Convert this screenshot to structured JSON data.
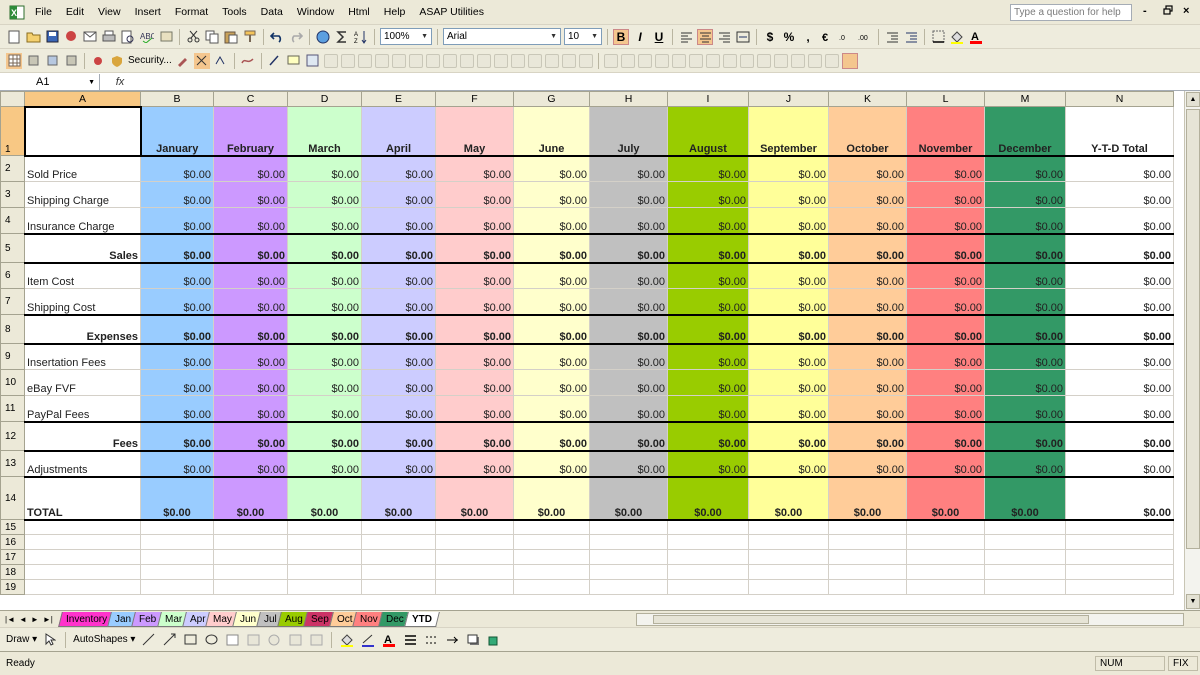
{
  "menu": {
    "items": [
      "File",
      "Edit",
      "View",
      "Insert",
      "Format",
      "Tools",
      "Data",
      "Window",
      "Html",
      "Help",
      "ASAP Utilities"
    ],
    "help_placeholder": "Type a question for help",
    "window_controls": [
      "-",
      "×"
    ]
  },
  "toolbar": {
    "zoom": "100%",
    "font": "Arial",
    "font_size": "10",
    "bold": "B",
    "italic": "I",
    "underline": "U",
    "currency": "$",
    "percent": "%",
    "comma": ",",
    "security_label": "Security..."
  },
  "formula_bar": {
    "name_box": "A1",
    "fx": "fx"
  },
  "sheet": {
    "columns": [
      "A",
      "B",
      "C",
      "D",
      "E",
      "F",
      "G",
      "H",
      "I",
      "J",
      "K",
      "L",
      "M",
      "N"
    ],
    "month_colors": [
      "#99ccff",
      "#cc99ff",
      "#ccffcc",
      "#ccccff",
      "#ffcccc",
      "#ffffcc",
      "#c0c0c0",
      "#99cc00",
      "#ffff99",
      "#ffcc99",
      "#ff8080",
      "#339966"
    ],
    "months": [
      "January",
      "February",
      "March",
      "April",
      "May",
      "June",
      "July",
      "August",
      "September",
      "October",
      "November",
      "December"
    ],
    "ytd_header": "Y-T-D Total",
    "row_numbers": [
      "1",
      "2",
      "3",
      "4",
      "5",
      "6",
      "7",
      "8",
      "9",
      "10",
      "11",
      "12",
      "13",
      "14",
      "15",
      "16",
      "17",
      "18",
      "19"
    ],
    "rows": [
      {
        "label": "Sold Price",
        "type": "item"
      },
      {
        "label": "Shipping Charge",
        "type": "item"
      },
      {
        "label": "Insurance Charge",
        "type": "item"
      },
      {
        "label": "Sales",
        "type": "subtotal"
      },
      {
        "label": "Item Cost",
        "type": "item"
      },
      {
        "label": "Shipping Cost",
        "type": "item"
      },
      {
        "label": "Expenses",
        "type": "subtotal"
      },
      {
        "label": "Insertation Fees",
        "type": "item"
      },
      {
        "label": "eBay FVF",
        "type": "item"
      },
      {
        "label": "PayPal Fees",
        "type": "item"
      },
      {
        "label": "Fees",
        "type": "subtotal"
      },
      {
        "label": "Adjustments",
        "type": "item"
      },
      {
        "label": "TOTAL",
        "type": "total"
      }
    ],
    "cell_value": "$0.00"
  },
  "tabs": [
    {
      "label": "Inventory",
      "color": "#ff33cc"
    },
    {
      "label": "Jan",
      "color": "#99ccff"
    },
    {
      "label": "Feb",
      "color": "#cc99ff"
    },
    {
      "label": "Mar",
      "color": "#ccffcc"
    },
    {
      "label": "Apr",
      "color": "#ccccff"
    },
    {
      "label": "May",
      "color": "#ffcccc"
    },
    {
      "label": "Jun",
      "color": "#ffffcc"
    },
    {
      "label": "Jul",
      "color": "#c0c0c0"
    },
    {
      "label": "Aug",
      "color": "#99cc00"
    },
    {
      "label": "Sep",
      "color": "#cc3366"
    },
    {
      "label": "Oct",
      "color": "#ffcc99"
    },
    {
      "label": "Nov",
      "color": "#ff8080"
    },
    {
      "label": "Dec",
      "color": "#339966"
    },
    {
      "label": "YTD",
      "color": "#ffffff",
      "active": true
    }
  ],
  "draw_toolbar": {
    "draw_label": "Draw",
    "autoshapes_label": "AutoShapes"
  },
  "status": {
    "text": "Ready",
    "num": "NUM",
    "fix": "FIX"
  }
}
